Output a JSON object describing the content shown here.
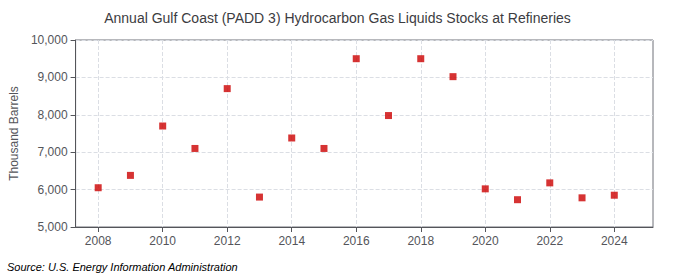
{
  "chart_data": {
    "type": "scatter",
    "title": "Annual Gulf Coast (PADD 3) Hydrocarbon Gas Liquids Stocks at Refineries",
    "ylabel": "Thousand Barrels",
    "source": "Source: U.S. Energy Information Administration",
    "x": [
      2008,
      2009,
      2010,
      2011,
      2012,
      2013,
      2014,
      2015,
      2016,
      2017,
      2018,
      2019,
      2020,
      2021,
      2022,
      2023,
      2024
    ],
    "values": [
      6050,
      6380,
      7700,
      7100,
      8700,
      5800,
      7380,
      7100,
      9500,
      7980,
      9500,
      9020,
      6020,
      5730,
      6180,
      5780,
      5850
    ],
    "color": "#cc0000",
    "marker": "square",
    "xlim": [
      2007.3,
      2025.2
    ],
    "xticks": [
      2008,
      2010,
      2012,
      2014,
      2016,
      2018,
      2020,
      2022,
      2024
    ],
    "ylim": [
      5000,
      10000
    ],
    "yticks": [
      {
        "value": 5000,
        "label": "5,000"
      },
      {
        "value": 6000,
        "label": "6,000"
      },
      {
        "value": 7000,
        "label": "7,000"
      },
      {
        "value": 8000,
        "label": "8,000"
      },
      {
        "value": 9000,
        "label": "9,000"
      },
      {
        "value": 10000,
        "label": "10,000"
      }
    ],
    "grid": true
  }
}
